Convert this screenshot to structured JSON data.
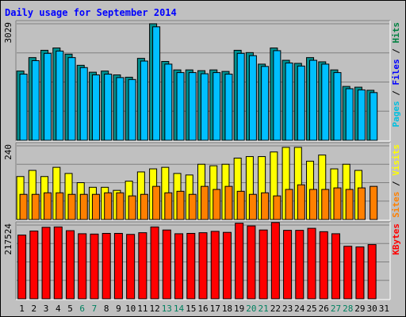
{
  "chart_data": {
    "type": "bar",
    "title": "Daily usage for September 2014",
    "days": [
      "1",
      "2",
      "3",
      "4",
      "5",
      "6",
      "7",
      "8",
      "9",
      "10",
      "11",
      "12",
      "13",
      "14",
      "15",
      "16",
      "17",
      "18",
      "19",
      "20",
      "21",
      "22",
      "23",
      "24",
      "25",
      "26",
      "27",
      "28",
      "29",
      "30",
      "31"
    ],
    "weekend_days": [
      "6",
      "7",
      "13",
      "14",
      "20",
      "21",
      "27",
      "28"
    ],
    "panels": [
      {
        "id": "hits-files-pages",
        "ytick": "3029",
        "ymax": 3029,
        "legend": [
          {
            "text": "Pages",
            "color": "#00c0e0"
          },
          {
            "text": " / ",
            "color": "#000000"
          },
          {
            "text": "Files",
            "color": "#0000ff"
          },
          {
            "text": " / ",
            "color": "#000000"
          },
          {
            "text": "Hits",
            "color": "#008040"
          }
        ],
        "series": [
          {
            "name": "Hits",
            "color": "#008f8f",
            "values": [
              1800,
              2150,
              2340,
              2400,
              2240,
              1950,
              1770,
              1800,
              1700,
              1640,
              2130,
              3030,
              2050,
              1830,
              1830,
              1810,
              1830,
              1790,
              2340,
              2280,
              1980,
              2400,
              2080,
              2000,
              2150,
              2040,
              1830,
              1400,
              1380,
              1300,
              null
            ]
          },
          {
            "name": "Files",
            "color": "#00bfff",
            "values": [
              1720,
              2070,
              2260,
              2320,
              2150,
              1890,
              1700,
              1720,
              1630,
              1580,
              2060,
              2950,
              1980,
              1760,
              1760,
              1730,
              1760,
              1720,
              2260,
              2200,
              1920,
              2330,
              2010,
              1930,
              2080,
              1980,
              1760,
              1340,
              1310,
              1240,
              null
            ]
          }
        ]
      },
      {
        "id": "visits-sites",
        "ytick": "240",
        "ymax": 240,
        "legend": [
          {
            "text": "Sites",
            "color": "#ff8000"
          },
          {
            "text": " / ",
            "color": "#000000"
          },
          {
            "text": "Visits",
            "color": "#ffff00"
          }
        ],
        "series": [
          {
            "name": "Visits",
            "color": "#ffff00",
            "values": [
              140,
              160,
              140,
              170,
              150,
              120,
              105,
              105,
              95,
              125,
              155,
              165,
              170,
              150,
              145,
              180,
              175,
              180,
              200,
              205,
              205,
              220,
              235,
              235,
              190,
              210,
              165,
              180,
              160,
              null,
              null
            ]
          },
          {
            "name": "Sites",
            "color": "#ff8000",
            "values": [
              82,
              82,
              87,
              87,
              82,
              82,
              82,
              87,
              87,
              77,
              82,
              108,
              87,
              92,
              82,
              108,
              98,
              108,
              92,
              82,
              87,
              77,
              98,
              113,
              98,
              98,
              103,
              98,
              103,
              108,
              null
            ]
          }
        ]
      },
      {
        "id": "kbytes",
        "ytick": "217524",
        "ymax": 217524,
        "legend": [
          {
            "text": "KBytes",
            "color": "#ff0000"
          }
        ],
        "series": [
          {
            "name": "KBytes",
            "color": "#ff0000",
            "values": [
              188000,
              200000,
              211000,
              212000,
              201000,
              192000,
              191000,
              193000,
              193000,
              190000,
              195000,
              212000,
              203000,
              192000,
              193000,
              195000,
              199000,
              196000,
              223000,
              215000,
              203000,
              225000,
              202000,
              202000,
              208000,
              198000,
              192000,
              155000,
              153000,
              160000,
              null
            ]
          }
        ]
      }
    ]
  }
}
